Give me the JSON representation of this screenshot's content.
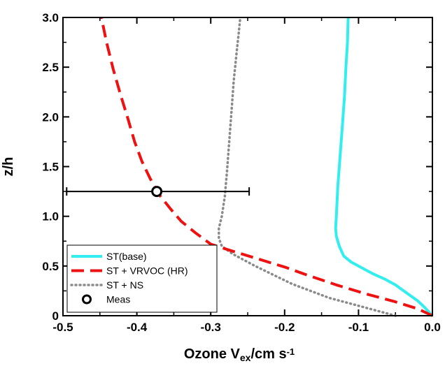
{
  "chart_data": {
    "type": "line",
    "xlabel": {
      "main": "Ozone V",
      "sub": "ex",
      "unit": "/cm s",
      "sup": "-1"
    },
    "ylabel": "z/h",
    "xlim": [
      -0.5,
      0.0
    ],
    "ylim": [
      0,
      3.0
    ],
    "x_ticks": [
      "-0.5",
      "-0.4",
      "-0.3",
      "-0.2",
      "-0.1",
      "0.0"
    ],
    "y_ticks": [
      "0",
      "0.5",
      "1.0",
      "1.5",
      "2.0",
      "2.5",
      "3.0"
    ],
    "legend_position": "bottom-left",
    "series": [
      {
        "name": "ST(base)",
        "style": "solid",
        "color": "#33eeee",
        "points": [
          [
            0.0,
            0.0
          ],
          [
            -0.01,
            0.08
          ],
          [
            -0.02,
            0.15
          ],
          [
            -0.035,
            0.23
          ],
          [
            -0.05,
            0.31
          ],
          [
            -0.065,
            0.37
          ],
          [
            -0.08,
            0.42
          ],
          [
            -0.095,
            0.48
          ],
          [
            -0.11,
            0.54
          ],
          [
            -0.12,
            0.6
          ],
          [
            -0.126,
            0.7
          ],
          [
            -0.13,
            0.8
          ],
          [
            -0.131,
            0.88
          ],
          [
            -0.13,
            1.0
          ],
          [
            -0.128,
            1.3
          ],
          [
            -0.125,
            1.6
          ],
          [
            -0.122,
            1.9
          ],
          [
            -0.119,
            2.2
          ],
          [
            -0.117,
            2.5
          ],
          [
            -0.115,
            2.75
          ],
          [
            -0.114,
            3.0
          ]
        ]
      },
      {
        "name": "ST + VRVOC (HR)",
        "style": "dashed",
        "color": "#ee1111",
        "points": [
          [
            0.0,
            0.0
          ],
          [
            -0.02,
            0.07
          ],
          [
            -0.05,
            0.14
          ],
          [
            -0.09,
            0.22
          ],
          [
            -0.13,
            0.31
          ],
          [
            -0.17,
            0.41
          ],
          [
            -0.2,
            0.49
          ],
          [
            -0.24,
            0.58
          ],
          [
            -0.275,
            0.66
          ],
          [
            -0.3,
            0.72
          ],
          [
            -0.32,
            0.83
          ],
          [
            -0.34,
            0.95
          ],
          [
            -0.355,
            1.08
          ],
          [
            -0.37,
            1.22
          ],
          [
            -0.382,
            1.38
          ],
          [
            -0.393,
            1.55
          ],
          [
            -0.403,
            1.75
          ],
          [
            -0.412,
            1.98
          ],
          [
            -0.422,
            2.22
          ],
          [
            -0.432,
            2.48
          ],
          [
            -0.441,
            2.75
          ],
          [
            -0.448,
            3.0
          ]
        ]
      },
      {
        "name": "ST + NS",
        "style": "dotted",
        "color": "#8a8a8a",
        "points": [
          [
            -0.05,
            0.0
          ],
          [
            -0.09,
            0.08
          ],
          [
            -0.14,
            0.18
          ],
          [
            -0.19,
            0.32
          ],
          [
            -0.24,
            0.5
          ],
          [
            -0.27,
            0.62
          ],
          [
            -0.285,
            0.7
          ],
          [
            -0.289,
            0.78
          ],
          [
            -0.289,
            0.88
          ],
          [
            -0.285,
            1.0
          ],
          [
            -0.281,
            1.2
          ],
          [
            -0.278,
            1.45
          ],
          [
            -0.275,
            1.75
          ],
          [
            -0.272,
            2.05
          ],
          [
            -0.269,
            2.35
          ],
          [
            -0.265,
            2.65
          ],
          [
            -0.262,
            2.85
          ],
          [
            -0.26,
            3.0
          ]
        ]
      }
    ],
    "measurement": {
      "name": "Meas",
      "x": -0.373,
      "y": 1.25,
      "x_error_low": -0.495,
      "x_error_high": -0.248
    }
  }
}
